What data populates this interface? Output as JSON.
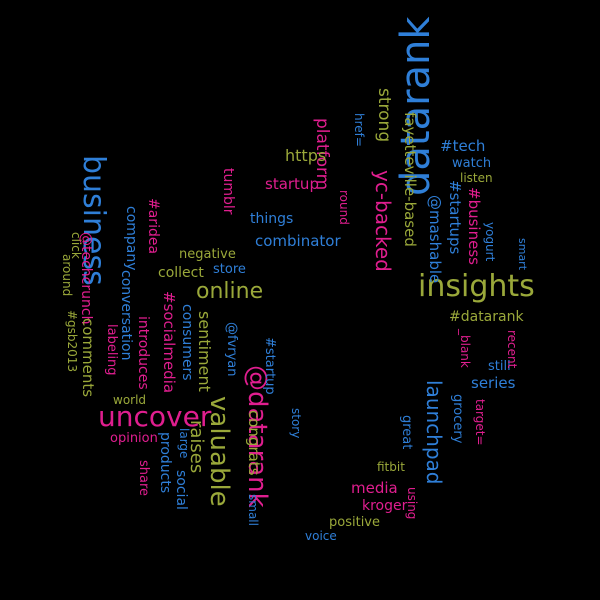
{
  "colors": {
    "background": "#000000",
    "blue": "#2f7fd8",
    "magenta": "#e01e8f",
    "olive": "#9aa83a"
  },
  "words": [
    {
      "text": "datarank",
      "color": "blue"
    },
    {
      "text": "insights",
      "color": "olive"
    },
    {
      "text": "business",
      "color": "blue"
    },
    {
      "text": "uncover",
      "color": "magenta"
    },
    {
      "text": "valuable",
      "color": "olive"
    },
    {
      "text": "@datarank",
      "color": "magenta"
    },
    {
      "text": "online",
      "color": "olive"
    },
    {
      "text": "launchpad",
      "color": "blue"
    },
    {
      "text": "yc-backed",
      "color": "magenta"
    },
    {
      "text": "strong",
      "color": "olive"
    },
    {
      "text": "platform",
      "color": "magenta"
    },
    {
      "text": "https",
      "color": "olive"
    },
    {
      "text": "startup",
      "color": "magenta"
    },
    {
      "text": "combinator",
      "color": "blue"
    },
    {
      "text": "media",
      "color": "magenta"
    },
    {
      "text": "kroger",
      "color": "magenta"
    },
    {
      "text": "positive",
      "color": "olive"
    },
    {
      "text": "voice",
      "color": "blue"
    },
    {
      "text": "fitbit",
      "color": "olive"
    },
    {
      "text": "great",
      "color": "blue"
    },
    {
      "text": "using",
      "color": "magenta"
    },
    {
      "text": "series",
      "color": "blue"
    },
    {
      "text": "still",
      "color": "blue"
    },
    {
      "text": "recent",
      "color": "magenta"
    },
    {
      "text": "#datarank",
      "color": "olive"
    },
    {
      "text": "#tech",
      "color": "blue"
    },
    {
      "text": "watch",
      "color": "blue"
    },
    {
      "text": "listen",
      "color": "olive"
    },
    {
      "text": "fayetteville-based",
      "color": "olive"
    },
    {
      "text": "@mashable",
      "color": "blue"
    },
    {
      "text": "#startups",
      "color": "blue"
    },
    {
      "text": "#business",
      "color": "magenta"
    },
    {
      "text": "yogurt",
      "color": "blue"
    },
    {
      "text": "smart",
      "color": "blue"
    },
    {
      "text": "grocery",
      "color": "blue"
    },
    {
      "text": "target=",
      "color": "magenta"
    },
    {
      "text": "_blank",
      "color": "magenta"
    },
    {
      "text": "href=",
      "color": "blue"
    },
    {
      "text": "round",
      "color": "magenta"
    },
    {
      "text": "tumblr",
      "color": "magenta"
    },
    {
      "text": "things",
      "color": "blue"
    },
    {
      "text": "negative",
      "color": "olive"
    },
    {
      "text": "store",
      "color": "blue"
    },
    {
      "text": "collect",
      "color": "olive"
    },
    {
      "text": "#gsb2013",
      "color": "olive"
    },
    {
      "text": "click",
      "color": "olive"
    },
    {
      "text": "around",
      "color": "olive"
    },
    {
      "text": "@techcrunch",
      "color": "magenta"
    },
    {
      "text": "company",
      "color": "blue"
    },
    {
      "text": "#aridea",
      "color": "magenta"
    },
    {
      "text": "conversation",
      "color": "blue"
    },
    {
      "text": "comments",
      "color": "olive"
    },
    {
      "text": "labeling",
      "color": "magenta"
    },
    {
      "text": "introduces",
      "color": "magenta"
    },
    {
      "text": "#socialmedia",
      "color": "magenta"
    },
    {
      "text": "consumers",
      "color": "blue"
    },
    {
      "text": "sentiment",
      "color": "olive"
    },
    {
      "text": "@fvryan",
      "color": "blue"
    },
    {
      "text": "world",
      "color": "olive"
    },
    {
      "text": "opinion",
      "color": "magenta"
    },
    {
      "text": "raises",
      "color": "olive"
    },
    {
      "text": "share",
      "color": "magenta"
    },
    {
      "text": "products",
      "color": "blue"
    },
    {
      "text": "social",
      "color": "blue"
    },
    {
      "text": "large",
      "color": "blue"
    },
    {
      "text": "congrats",
      "color": "olive"
    },
    {
      "text": "#startup",
      "color": "blue"
    },
    {
      "text": "small",
      "color": "blue"
    },
    {
      "text": "story",
      "color": "blue"
    }
  ]
}
